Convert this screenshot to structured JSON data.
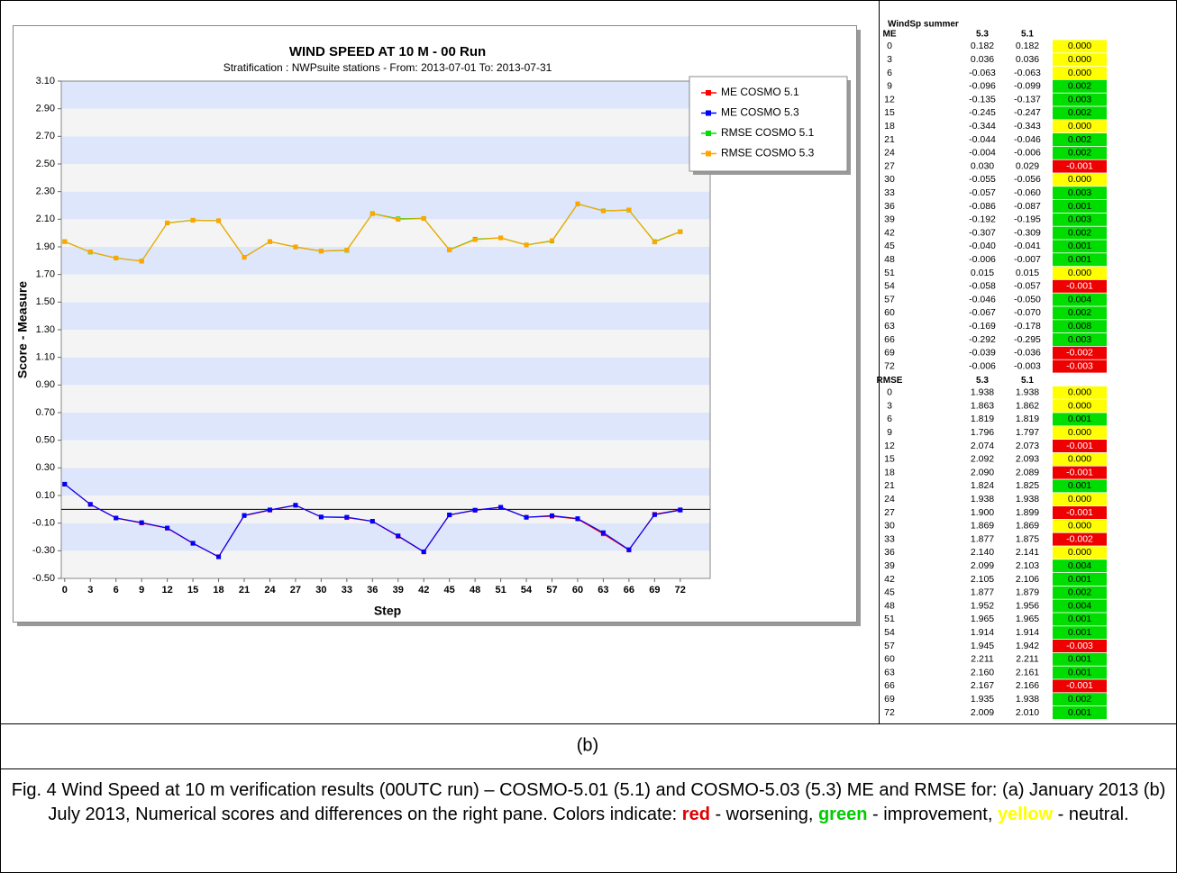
{
  "chart_data": {
    "type": "line",
    "title": "WIND SPEED AT 10 M - 00 Run",
    "subtitle": "Stratification : NWPsuite stations - From: 2013-07-01 To: 2013-07-31",
    "x_label": "Step",
    "y_label": "Score - Measure",
    "x": [
      0,
      3,
      6,
      9,
      12,
      15,
      18,
      21,
      24,
      27,
      30,
      33,
      36,
      39,
      42,
      45,
      48,
      51,
      54,
      57,
      60,
      63,
      66,
      69,
      72
    ],
    "xticks": [
      0,
      3,
      6,
      9,
      12,
      15,
      18,
      21,
      24,
      27,
      30,
      33,
      36,
      39,
      42,
      45,
      48,
      51,
      54,
      57,
      60,
      63,
      66,
      69,
      72
    ],
    "xlim": [
      -0.4,
      75.5
    ],
    "ylim": [
      -0.5,
      3.1
    ],
    "yticks": [
      {
        "value": -0.5,
        "label": "-0.50"
      },
      {
        "value": -0.3,
        "label": "-0.30"
      },
      {
        "value": -0.1,
        "label": "-0.10"
      },
      {
        "value": 0.1,
        "label": "0.10"
      },
      {
        "value": 0.3,
        "label": "0.30"
      },
      {
        "value": 0.5,
        "label": "0.50"
      },
      {
        "value": 0.7,
        "label": "0.70"
      },
      {
        "value": 0.9,
        "label": "0.90"
      },
      {
        "value": 1.1,
        "label": "1.10"
      },
      {
        "value": 1.3,
        "label": "1.30"
      },
      {
        "value": 1.5,
        "label": "1.50"
      },
      {
        "value": 1.7,
        "label": "1.70"
      },
      {
        "value": 1.9,
        "label": "1.90"
      },
      {
        "value": 2.1,
        "label": "2.10"
      },
      {
        "value": 2.3,
        "label": "2.30"
      },
      {
        "value": 2.5,
        "label": "2.50"
      },
      {
        "value": 2.7,
        "label": "2.70"
      },
      {
        "value": 2.9,
        "label": "2.90"
      },
      {
        "value": 3.1,
        "label": "3.10"
      }
    ],
    "legend": "upper right",
    "series": [
      {
        "name": "ME COSMO 5.1",
        "color": "#ff0000",
        "values": [
          0.182,
          0.036,
          -0.063,
          -0.099,
          -0.137,
          -0.247,
          -0.343,
          -0.046,
          -0.006,
          0.029,
          -0.056,
          -0.06,
          -0.087,
          -0.195,
          -0.309,
          -0.041,
          -0.007,
          0.015,
          -0.057,
          -0.05,
          -0.07,
          -0.178,
          -0.295,
          -0.036,
          -0.003
        ]
      },
      {
        "name": "ME COSMO 5.3",
        "color": "#0000ff",
        "values": [
          0.182,
          0.036,
          -0.063,
          -0.096,
          -0.135,
          -0.245,
          -0.344,
          -0.044,
          -0.004,
          0.03,
          -0.055,
          -0.057,
          -0.086,
          -0.192,
          -0.307,
          -0.04,
          -0.006,
          0.015,
          -0.058,
          -0.046,
          -0.067,
          -0.169,
          -0.292,
          -0.039,
          -0.006
        ]
      },
      {
        "name": "RMSE COSMO 5.1",
        "color": "#00dd00",
        "values": [
          1.938,
          1.862,
          1.819,
          1.797,
          2.073,
          2.093,
          2.089,
          1.825,
          1.938,
          1.899,
          1.869,
          1.875,
          2.141,
          2.103,
          2.106,
          1.879,
          1.956,
          1.965,
          1.914,
          1.942,
          2.211,
          2.161,
          2.166,
          1.938,
          2.01
        ]
      },
      {
        "name": "RMSE COSMO 5.3",
        "color": "#ffa500",
        "values": [
          1.938,
          1.863,
          1.819,
          1.796,
          2.074,
          2.092,
          2.09,
          1.824,
          1.938,
          1.9,
          1.869,
          1.877,
          2.14,
          2.099,
          2.105,
          1.877,
          1.952,
          1.965,
          1.914,
          1.945,
          2.211,
          2.16,
          2.167,
          1.935,
          2.009
        ]
      }
    ]
  },
  "table": {
    "title": "WindSp summer",
    "sections": [
      {
        "header": [
          "ME",
          "5.3",
          "5.1"
        ],
        "rows": [
          {
            "cells": [
              "0",
              "0.182",
              "0.182",
              "0.000"
            ],
            "fill": "#ffff00"
          },
          {
            "cells": [
              "3",
              "0.036",
              "0.036",
              "0.000"
            ],
            "fill": "#ffff00"
          },
          {
            "cells": [
              "6",
              "-0.063",
              "-0.063",
              "0.000"
            ],
            "fill": "#ffff00"
          },
          {
            "cells": [
              "9",
              "-0.096",
              "-0.099",
              "0.002"
            ],
            "fill": "#00dd00"
          },
          {
            "cells": [
              "12",
              "-0.135",
              "-0.137",
              "0.003"
            ],
            "fill": "#00dd00"
          },
          {
            "cells": [
              "15",
              "-0.245",
              "-0.247",
              "0.002"
            ],
            "fill": "#00dd00"
          },
          {
            "cells": [
              "18",
              "-0.344",
              "-0.343",
              "0.000"
            ],
            "fill": "#ffff00"
          },
          {
            "cells": [
              "21",
              "-0.044",
              "-0.046",
              "0.002"
            ],
            "fill": "#00dd00"
          },
          {
            "cells": [
              "24",
              "-0.004",
              "-0.006",
              "0.002"
            ],
            "fill": "#00dd00"
          },
          {
            "cells": [
              "27",
              "0.030",
              "0.029",
              "-0.001"
            ],
            "fill": "#ee0000"
          },
          {
            "cells": [
              "30",
              "-0.055",
              "-0.056",
              "0.000"
            ],
            "fill": "#ffff00"
          },
          {
            "cells": [
              "33",
              "-0.057",
              "-0.060",
              "0.003"
            ],
            "fill": "#00dd00"
          },
          {
            "cells": [
              "36",
              "-0.086",
              "-0.087",
              "0.001"
            ],
            "fill": "#00dd00"
          },
          {
            "cells": [
              "39",
              "-0.192",
              "-0.195",
              "0.003"
            ],
            "fill": "#00dd00"
          },
          {
            "cells": [
              "42",
              "-0.307",
              "-0.309",
              "0.002"
            ],
            "fill": "#00dd00"
          },
          {
            "cells": [
              "45",
              "-0.040",
              "-0.041",
              "0.001"
            ],
            "fill": "#00dd00"
          },
          {
            "cells": [
              "48",
              "-0.006",
              "-0.007",
              "0.001"
            ],
            "fill": "#00dd00"
          },
          {
            "cells": [
              "51",
              "0.015",
              "0.015",
              "0.000"
            ],
            "fill": "#ffff00"
          },
          {
            "cells": [
              "54",
              "-0.058",
              "-0.057",
              "-0.001"
            ],
            "fill": "#ee0000"
          },
          {
            "cells": [
              "57",
              "-0.046",
              "-0.050",
              "0.004"
            ],
            "fill": "#00dd00"
          },
          {
            "cells": [
              "60",
              "-0.067",
              "-0.070",
              "0.002"
            ],
            "fill": "#00dd00"
          },
          {
            "cells": [
              "63",
              "-0.169",
              "-0.178",
              "0.008"
            ],
            "fill": "#00dd00"
          },
          {
            "cells": [
              "66",
              "-0.292",
              "-0.295",
              "0.003"
            ],
            "fill": "#00dd00"
          },
          {
            "cells": [
              "69",
              "-0.039",
              "-0.036",
              "-0.002"
            ],
            "fill": "#ee0000"
          },
          {
            "cells": [
              "72",
              "-0.006",
              "-0.003",
              "-0.003"
            ],
            "fill": "#ee0000"
          }
        ]
      },
      {
        "header": [
          "RMSE",
          "5.3",
          "5.1"
        ],
        "rows": [
          {
            "cells": [
              "0",
              "1.938",
              "1.938",
              "0.000"
            ],
            "fill": "#ffff00"
          },
          {
            "cells": [
              "3",
              "1.863",
              "1.862",
              "0.000"
            ],
            "fill": "#ffff00"
          },
          {
            "cells": [
              "6",
              "1.819",
              "1.819",
              "0.001"
            ],
            "fill": "#00dd00"
          },
          {
            "cells": [
              "9",
              "1.796",
              "1.797",
              "0.000"
            ],
            "fill": "#ffff00"
          },
          {
            "cells": [
              "12",
              "2.074",
              "2.073",
              "-0.001"
            ],
            "fill": "#ee0000"
          },
          {
            "cells": [
              "15",
              "2.092",
              "2.093",
              "0.000"
            ],
            "fill": "#ffff00"
          },
          {
            "cells": [
              "18",
              "2.090",
              "2.089",
              "-0.001"
            ],
            "fill": "#ee0000"
          },
          {
            "cells": [
              "21",
              "1.824",
              "1.825",
              "0.001"
            ],
            "fill": "#00dd00"
          },
          {
            "cells": [
              "24",
              "1.938",
              "1.938",
              "0.000"
            ],
            "fill": "#ffff00"
          },
          {
            "cells": [
              "27",
              "1.900",
              "1.899",
              "-0.001"
            ],
            "fill": "#ee0000"
          },
          {
            "cells": [
              "30",
              "1.869",
              "1.869",
              "0.000"
            ],
            "fill": "#ffff00"
          },
          {
            "cells": [
              "33",
              "1.877",
              "1.875",
              "-0.002"
            ],
            "fill": "#ee0000"
          },
          {
            "cells": [
              "36",
              "2.140",
              "2.141",
              "0.000"
            ],
            "fill": "#ffff00"
          },
          {
            "cells": [
              "39",
              "2.099",
              "2.103",
              "0.004"
            ],
            "fill": "#00dd00"
          },
          {
            "cells": [
              "42",
              "2.105",
              "2.106",
              "0.001"
            ],
            "fill": "#00dd00"
          },
          {
            "cells": [
              "45",
              "1.877",
              "1.879",
              "0.002"
            ],
            "fill": "#00dd00"
          },
          {
            "cells": [
              "48",
              "1.952",
              "1.956",
              "0.004"
            ],
            "fill": "#00dd00"
          },
          {
            "cells": [
              "51",
              "1.965",
              "1.965",
              "0.001"
            ],
            "fill": "#00dd00"
          },
          {
            "cells": [
              "54",
              "1.914",
              "1.914",
              "0.001"
            ],
            "fill": "#00dd00"
          },
          {
            "cells": [
              "57",
              "1.945",
              "1.942",
              "-0.003"
            ],
            "fill": "#ee0000"
          },
          {
            "cells": [
              "60",
              "2.211",
              "2.211",
              "0.001"
            ],
            "fill": "#00dd00"
          },
          {
            "cells": [
              "63",
              "2.160",
              "2.161",
              "0.001"
            ],
            "fill": "#00dd00"
          },
          {
            "cells": [
              "66",
              "2.167",
              "2.166",
              "-0.001"
            ],
            "fill": "#ee0000"
          },
          {
            "cells": [
              "69",
              "1.935",
              "1.938",
              "0.002"
            ],
            "fill": "#00dd00"
          },
          {
            "cells": [
              "72",
              "2.009",
              "2.010",
              "0.001"
            ],
            "fill": "#00dd00"
          }
        ]
      }
    ]
  },
  "panel_label": "(b)",
  "caption": {
    "text": "Fig. 4 Wind Speed at 10 m verification results (00UTC run) – COSMO-5.01 (5.1) and COSMO-5.03 (5.3) ME and RMSE for: (a)  January 2013 (b) July 2013, Numerical scores and differences on the right pane. Colors indicate:",
    "keys": [
      {
        "word": "red",
        "color": "#e00000",
        "meaning": "- worsening,"
      },
      {
        "word": "green",
        "color": "#00cc00",
        "meaning": "- improvement,"
      },
      {
        "word": "yellow",
        "color": "#ffff00",
        "meaning": "- neutral."
      }
    ]
  }
}
